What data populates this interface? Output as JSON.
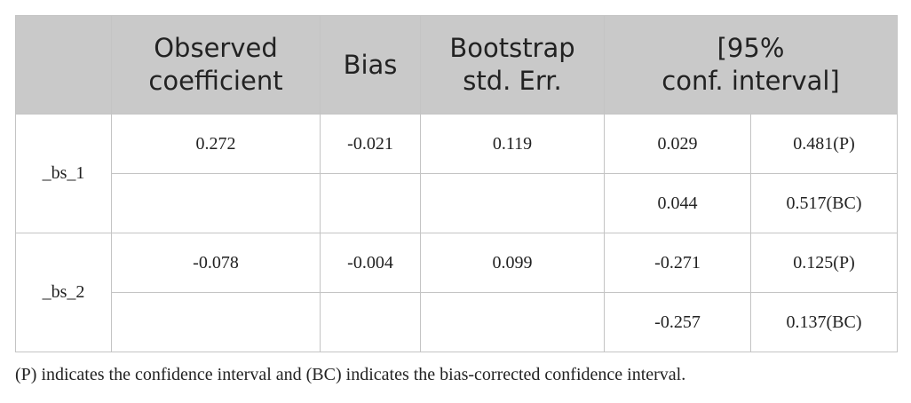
{
  "table": {
    "header": [
      [
        "Observed",
        "coefficient"
      ],
      [
        "Bias"
      ],
      [
        "Bootstrap",
        "std. Err."
      ],
      [
        "[95%",
        "conf. interval]"
      ]
    ],
    "rows": [
      {
        "label": "_bs_1",
        "coefficient": "0.272",
        "bias": "-0.021",
        "std_err": "0.119",
        "ci": [
          [
            "0.029",
            "0.481(P)"
          ],
          [
            "0.044",
            "0.517(BC)"
          ]
        ]
      },
      {
        "label": "_bs_2",
        "coefficient": "-0.078",
        "bias": "-0.004",
        "std_err": "0.099",
        "ci": [
          [
            "-0.271",
            "0.125(P)"
          ],
          [
            "-0.257",
            "0.137(BC)"
          ]
        ]
      }
    ]
  },
  "footnote": "(P) indicates the confidence interval and (BC) indicates the bias-corrected confidence interval."
}
